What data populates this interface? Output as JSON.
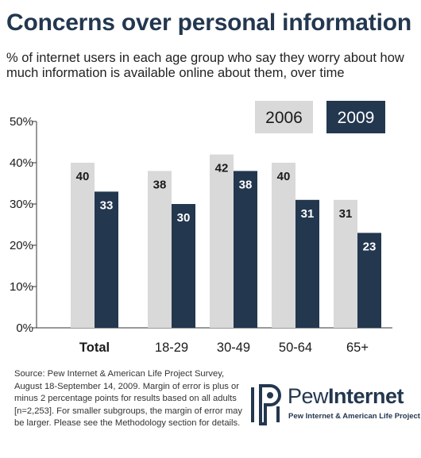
{
  "title": "Concerns over personal information",
  "subtitle": "% of internet users in each age group who say they worry about how much information is available online about them, over time",
  "source": "Source: Pew Internet & American Life Project Survey, August 18-September 14, 2009. Margin of error is plus or minus 2 percentage points for results based on all adults [n=2,253]. For smaller subgroups, the margin of error may be larger. Please see the Methodology section for details.",
  "logo": {
    "name_part1": "Pew",
    "name_part2": "Internet",
    "tagline": "Pew Internet & American Life Project"
  },
  "colors": {
    "series_2006": "#d9d9d9",
    "series_2009": "#23374f",
    "title": "#23374f"
  },
  "chart_data": {
    "type": "bar",
    "categories": [
      "Total",
      "18-29",
      "30-49",
      "50-64",
      "65+"
    ],
    "series": [
      {
        "name": "2006",
        "values": [
          40,
          38,
          42,
          40,
          31
        ]
      },
      {
        "name": "2009",
        "values": [
          33,
          30,
          38,
          31,
          23
        ]
      }
    ],
    "yticks": [
      "0%",
      "10%",
      "20%",
      "30%",
      "40%",
      "50%"
    ],
    "ylim": [
      0,
      50
    ],
    "xlabel": "",
    "ylabel": "",
    "legend": "top-right",
    "grid": false
  }
}
